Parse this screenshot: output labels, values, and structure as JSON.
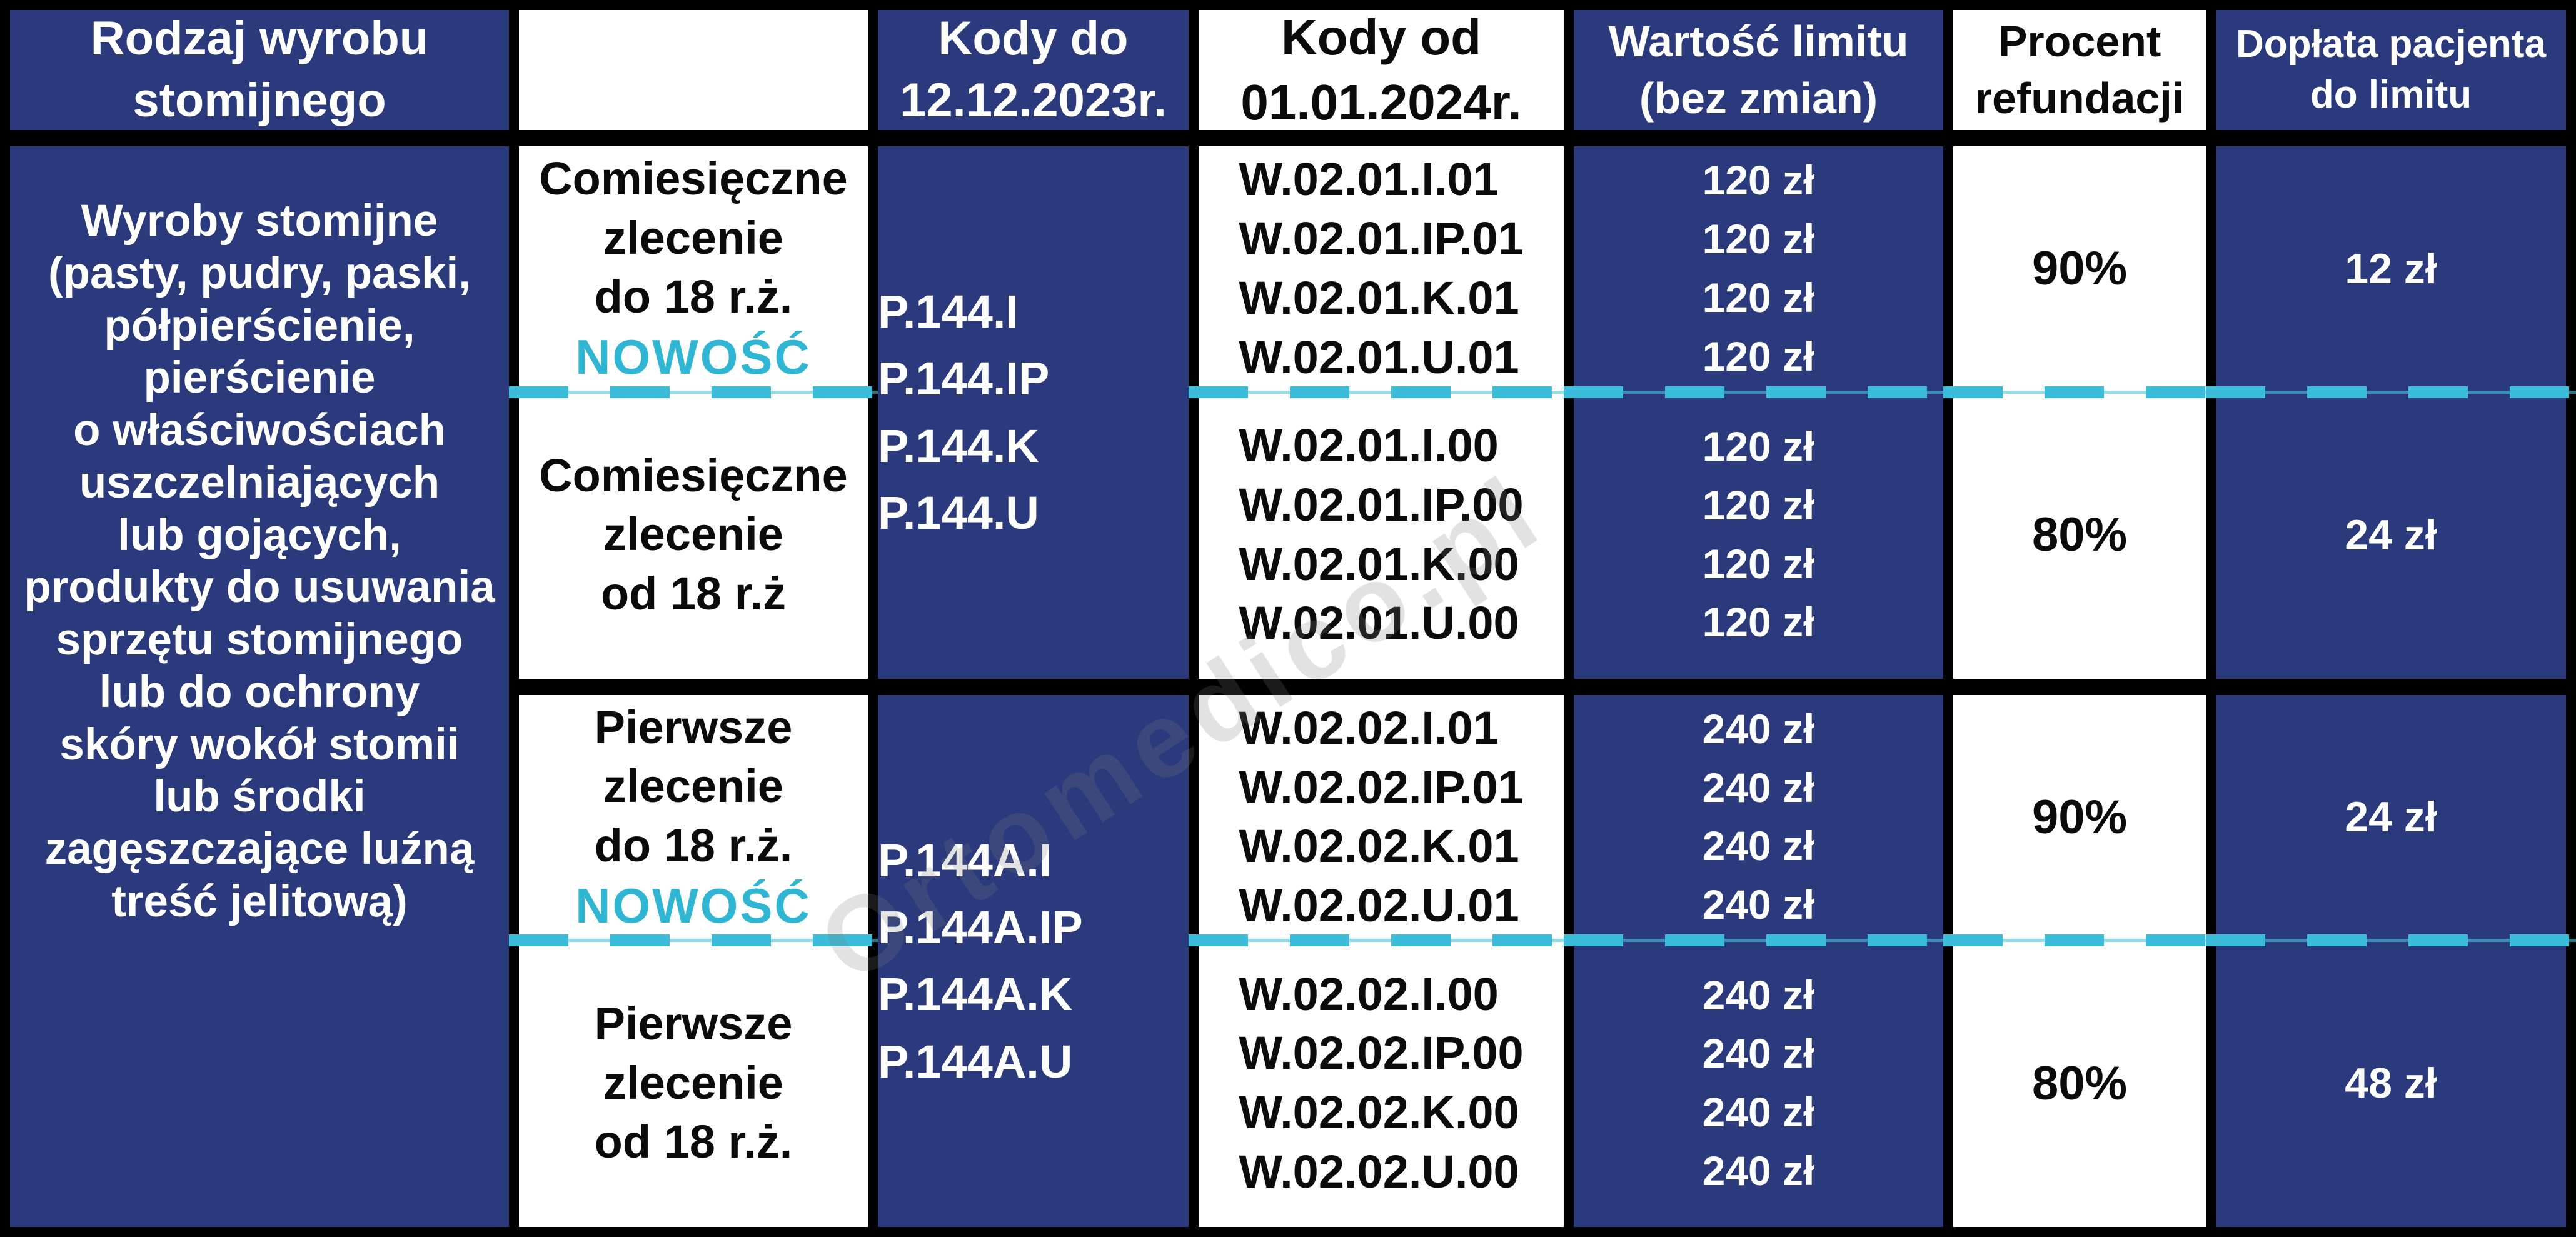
{
  "colors": {
    "table_navy": "#2b3a7d",
    "accent_cyan": "#3bbdd9",
    "badge_cyan": "#2eb6d4",
    "grid_black": "#000000",
    "cell_white": "#ffffff"
  },
  "watermark": {
    "text": "Ortomedico.pl"
  },
  "header": {
    "product_type": [
      "Rodzaj wyrobu",
      "stomijnego"
    ],
    "order_type": [],
    "codes_until": [
      "Kody do",
      "12.12.2023r."
    ],
    "codes_from": [
      "Kody od",
      "01.01.2024r."
    ],
    "limit_value": [
      "Wartość limitu",
      "(bez zmian)"
    ],
    "refund_percent": [
      "Procent",
      "refundacji"
    ],
    "patient_copay": [
      "Dopłata pacjenta",
      "do limitu"
    ]
  },
  "product": {
    "lines": [
      "Wyroby stomijne",
      "(pasty, pudry, paski,",
      "półpierścienie,",
      "pierścienie",
      "o właściwościach",
      "uszczelniających",
      "lub gojących,",
      "produkty do usuwania",
      "sprzętu stomijnego",
      "lub do ochrony",
      "skóry wokół stomii",
      "lub środki",
      "zagęszczające luźną",
      "treść jelitową)"
    ]
  },
  "groups": [
    {
      "codes_old": [
        "P.144.I",
        "P.144.IP",
        "P.144.K",
        "P.144.U"
      ],
      "sub_rows": [
        {
          "order_lines": [
            "Comiesięczne",
            "zlecenie",
            "do 18 r.ż."
          ],
          "badge": "NOWOŚĆ",
          "codes_new": [
            "W.02.01.I.01",
            "W.02.01.IP.01",
            "W.02.01.K.01",
            "W.02.01.U.01"
          ],
          "limits": [
            "120 zł",
            "120 zł",
            "120 zł",
            "120 zł"
          ],
          "refund": "90%",
          "copay": "12 zł"
        },
        {
          "order_lines": [
            "Comiesięczne",
            "zlecenie",
            "od 18 r.ż"
          ],
          "badge": "",
          "codes_new": [
            "W.02.01.I.00",
            "W.02.01.IP.00",
            "W.02.01.K.00",
            "W.02.01.U.00"
          ],
          "limits": [
            "120 zł",
            "120 zł",
            "120 zł",
            "120 zł"
          ],
          "refund": "80%",
          "copay": "24 zł"
        }
      ]
    },
    {
      "codes_old": [
        "P.144A.I",
        "P.144A.IP",
        "P.144A.K",
        "P.144A.U"
      ],
      "sub_rows": [
        {
          "order_lines": [
            "Pierwsze",
            "zlecenie",
            "do 18 r.ż."
          ],
          "badge": "NOWOŚĆ",
          "codes_new": [
            "W.02.02.I.01",
            "W.02.02.IP.01",
            "W.02.02.K.01",
            "W.02.02.U.01"
          ],
          "limits": [
            "240 zł",
            "240 zł",
            "240 zł",
            "240 zł"
          ],
          "refund": "90%",
          "copay": "24 zł"
        },
        {
          "order_lines": [
            "Pierwsze",
            "zlecenie",
            "od 18 r.ż."
          ],
          "badge": "",
          "codes_new": [
            "W.02.02.I.00",
            "W.02.02.IP.00",
            "W.02.02.K.00",
            "W.02.02.U.00"
          ],
          "limits": [
            "240 zł",
            "240 zł",
            "240 zł",
            "240 zł"
          ],
          "refund": "80%",
          "copay": "48 zł"
        }
      ]
    }
  ]
}
